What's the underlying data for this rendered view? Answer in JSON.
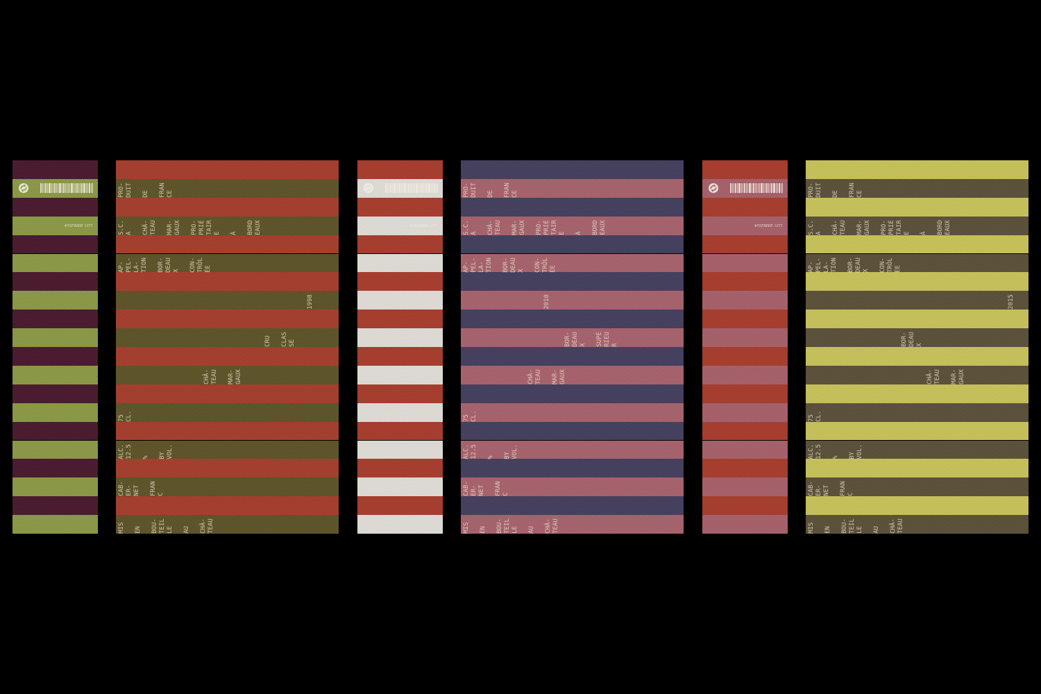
{
  "strips": [
    {
      "colors": [
        "#4b1a2f",
        "#8b9a46"
      ],
      "lot": "LOT 30062014",
      "icon": "recycle-swirl-icon"
    },
    {
      "colors": [
        "#a83d2d",
        "#e1ded8"
      ],
      "lot": "LOT 30062014",
      "icon": "recycle-swirl-icon"
    },
    {
      "colors": [
        "#a83d2d",
        "#a8616b"
      ],
      "lot": "LOT 30062014",
      "icon": "recycle-swirl-icon"
    }
  ],
  "labels": [
    {
      "colors": [
        "#a63e2e",
        "#5e5429"
      ],
      "rows": [
        [
          [
            "PRO-",
            "DUIT"
          ],
          [
            "DE"
          ],
          [
            "FRAN",
            "CE"
          ]
        ],
        [
          [
            "S.C.",
            "A"
          ],
          [
            "CHÂ-",
            "TEAU"
          ],
          [
            "MAR-",
            "GAUX"
          ],
          [
            "PRO-",
            "PRIÉ",
            "TAIR",
            "E"
          ],
          [
            "À"
          ],
          [
            "BORD",
            "EAUX"
          ]
        ],
        [
          [
            "AP-",
            "PEL-",
            "LA-",
            "TION"
          ],
          [
            "BOR-",
            "DEAU",
            "X"
          ],
          [
            "CON-",
            "TRÔL",
            "ÉE"
          ]
        ],
        [
          [
            "1998"
          ]
        ],
        [
          [
            "CRU"
          ],
          [
            "CLAS",
            "SÉ"
          ]
        ],
        [
          [
            "CHÂ-",
            "TEAU"
          ],
          [
            "MAR-",
            "GAUX"
          ]
        ],
        [
          [
            "75",
            "CL."
          ]
        ],
        [
          [
            "ALC.",
            "12.5"
          ],
          [
            "%"
          ],
          [
            "BY",
            "VOL."
          ]
        ],
        [
          [
            "CAB-",
            "ER-",
            "NET"
          ],
          [
            "FRAN",
            "C"
          ]
        ],
        [
          [
            "MIS"
          ],
          [
            "EN"
          ],
          [
            "BOU-",
            "TEIL",
            "LE"
          ],
          [
            "AU"
          ],
          [
            "CHÂ-",
            "TEAU"
          ]
        ]
      ]
    },
    {
      "colors": [
        "#453f5f",
        "#a8636d"
      ],
      "rows": [
        [
          [
            "PRO-",
            "DUIT"
          ],
          [
            "DE"
          ],
          [
            "FRAN",
            "CE"
          ]
        ],
        [
          [
            "S.C.",
            "A"
          ],
          [
            "CHÂ-",
            "TEAU"
          ],
          [
            "MAR-",
            "GAUX"
          ],
          [
            "PRO-",
            "PRIÉ",
            "TAIR",
            "E"
          ],
          [
            "À"
          ],
          [
            "BORD",
            "EAUX"
          ]
        ],
        [
          [
            "AP-",
            "PEL-",
            "LA-",
            "TION"
          ],
          [
            "BOR-",
            "DEAU",
            "X"
          ],
          [
            "CON-",
            "TRÔL",
            "ÉE"
          ]
        ],
        [
          [
            "2010"
          ]
        ],
        [
          [
            "BOR-",
            "DEAU",
            "X"
          ],
          [
            "SUPÉ",
            "RIEU",
            "R"
          ]
        ],
        [
          [
            "CHÂ-",
            "TEAU"
          ],
          [
            "MAR-",
            "GAUX"
          ]
        ],
        [
          [
            "75",
            "CL."
          ]
        ],
        [
          [
            "ALC.",
            "12.5"
          ],
          [
            "%"
          ],
          [
            "BY",
            "VOL."
          ]
        ],
        [
          [
            "CAB-",
            "ER-",
            "NET"
          ],
          [
            "FRAN",
            "C"
          ]
        ],
        [
          [
            "MIS"
          ],
          [
            "EN"
          ],
          [
            "BOU-",
            "TEIL",
            "LE"
          ],
          [
            "AU"
          ],
          [
            "CHÂ-",
            "TEAU"
          ]
        ]
      ]
    },
    {
      "colors": [
        "#c9c35b",
        "#5c5139"
      ],
      "rows": [
        [
          [
            "PRO-",
            "DUIT"
          ],
          [
            "DE"
          ],
          [
            "FRAN",
            "CE"
          ]
        ],
        [
          [
            "S.C.",
            "A"
          ],
          [
            "CHÂ-",
            "TEAU"
          ],
          [
            "MAR-",
            "GAUX"
          ],
          [
            "PRO-",
            "PRIÉ",
            "TAIR",
            "E"
          ],
          [
            "À"
          ],
          [
            "BORD",
            "EAUX"
          ]
        ],
        [
          [
            "AP-",
            "PEL-",
            "LA-",
            "TION"
          ],
          [
            "BOR-",
            "DEAU",
            "X"
          ],
          [
            "CON-",
            "TRÔL",
            "ÉE"
          ]
        ],
        [
          [
            "2015"
          ]
        ],
        [
          [
            "BOR-",
            "DEAU",
            "X"
          ]
        ],
        [
          [
            "CHÂ-",
            "TEAU"
          ],
          [
            "MAR-",
            "GAUX"
          ]
        ],
        [
          [
            "75",
            "CL."
          ]
        ],
        [
          [
            "ALC.",
            "12.5"
          ],
          [
            "%"
          ],
          [
            "BY",
            "VOL."
          ]
        ],
        [
          [
            "CAB-",
            "ER-",
            "NET"
          ],
          [
            "FRAN",
            "C"
          ]
        ],
        [
          [
            "MIS"
          ],
          [
            "EN"
          ],
          [
            "BOU-",
            "TEIL",
            "LE"
          ],
          [
            "AU"
          ],
          [
            "CHÂ-",
            "TEAU"
          ]
        ]
      ]
    }
  ]
}
